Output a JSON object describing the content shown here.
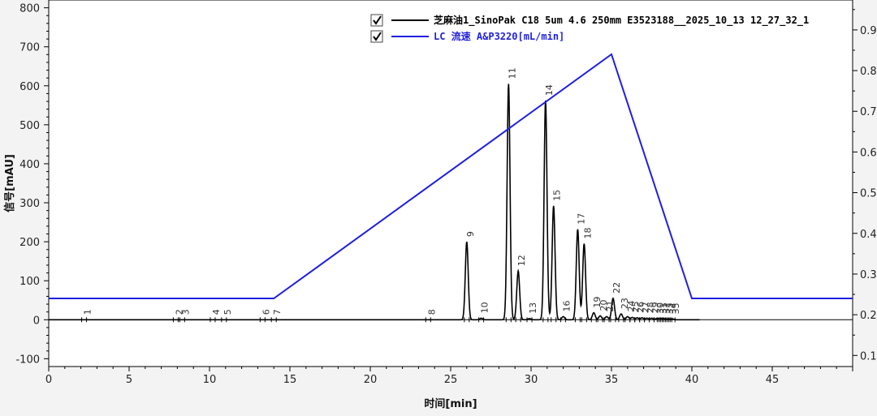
{
  "chart_data": {
    "type": "line",
    "xlabel": "时间[min]",
    "ylabel": "信号[mAU]",
    "xlim": [
      0,
      50
    ],
    "ylim": [
      -120,
      820
    ],
    "y2lim": [
      0.0727,
      0.9735
    ],
    "x_ticks": [
      0,
      5,
      10,
      15,
      20,
      25,
      30,
      35,
      40,
      45
    ],
    "y_ticks": [
      -100,
      0,
      100,
      200,
      300,
      400,
      500,
      600,
      700,
      800
    ],
    "y2_ticks": [
      0.1,
      0.2,
      0.3,
      0.4,
      0.5,
      0.6,
      0.7,
      0.8,
      0.9
    ],
    "grid": false,
    "legend_position": "top-right",
    "series": [
      {
        "name": "芝麻油1_SinoPak C18 5um 4.6 250mm E3523188__2025_10_13 12_27_32_1",
        "color": "#000000",
        "axis": "left",
        "checked": true,
        "peaks": [
          {
            "label": "1",
            "rt": 2.2,
            "height": 0
          },
          {
            "label": "2",
            "rt": 7.9,
            "height": 0
          },
          {
            "label": "3",
            "rt": 8.3,
            "height": 0
          },
          {
            "label": "4",
            "rt": 10.2,
            "height": 0
          },
          {
            "label": "5",
            "rt": 10.9,
            "height": 0
          },
          {
            "label": "6",
            "rt": 13.3,
            "height": 0
          },
          {
            "label": "7",
            "rt": 14.0,
            "height": 0
          },
          {
            "label": "8",
            "rt": 23.6,
            "height": 0
          },
          {
            "label": "9",
            "rt": 26.0,
            "height": 200
          },
          {
            "label": "10",
            "rt": 26.9,
            "height": 4
          },
          {
            "label": "11",
            "rt": 28.6,
            "height": 605
          },
          {
            "label": "12",
            "rt": 29.2,
            "height": 125
          },
          {
            "label": "13",
            "rt": 29.9,
            "height": 3
          },
          {
            "label": "14",
            "rt": 30.9,
            "height": 562
          },
          {
            "label": "15",
            "rt": 31.4,
            "height": 292
          },
          {
            "label": "16",
            "rt": 32.0,
            "height": 8
          },
          {
            "label": "17",
            "rt": 32.9,
            "height": 232
          },
          {
            "label": "18",
            "rt": 33.3,
            "height": 195
          },
          {
            "label": "19",
            "rt": 33.9,
            "height": 18
          },
          {
            "label": "20",
            "rt": 34.3,
            "height": 10
          },
          {
            "label": "21",
            "rt": 34.7,
            "height": 8
          },
          {
            "label": "22",
            "rt": 35.1,
            "height": 55
          },
          {
            "label": "23",
            "rt": 35.6,
            "height": 15
          },
          {
            "label": "24",
            "rt": 36.0,
            "height": 8
          },
          {
            "label": "25",
            "rt": 36.3,
            "height": 6
          },
          {
            "label": "26",
            "rt": 36.6,
            "height": 5
          },
          {
            "label": "27",
            "rt": 36.9,
            "height": 5
          },
          {
            "label": "28",
            "rt": 37.2,
            "height": 4
          },
          {
            "label": "29",
            "rt": 37.5,
            "height": 4
          },
          {
            "label": "30",
            "rt": 37.8,
            "height": 3
          },
          {
            "label": "31",
            "rt": 38.0,
            "height": 3
          },
          {
            "label": "32",
            "rt": 38.2,
            "height": 3
          },
          {
            "label": "33",
            "rt": 38.4,
            "height": 2
          },
          {
            "label": "34",
            "rt": 38.6,
            "height": 2
          },
          {
            "label": "35",
            "rt": 38.8,
            "height": 2
          }
        ]
      },
      {
        "name": "LC 流速 A&P3220[mL/min]",
        "color": "#1f1fe0",
        "axis": "right",
        "checked": true,
        "x": [
          0,
          14,
          35,
          40,
          50
        ],
        "y": [
          0.24,
          0.24,
          0.84,
          0.24,
          0.24
        ]
      }
    ]
  }
}
